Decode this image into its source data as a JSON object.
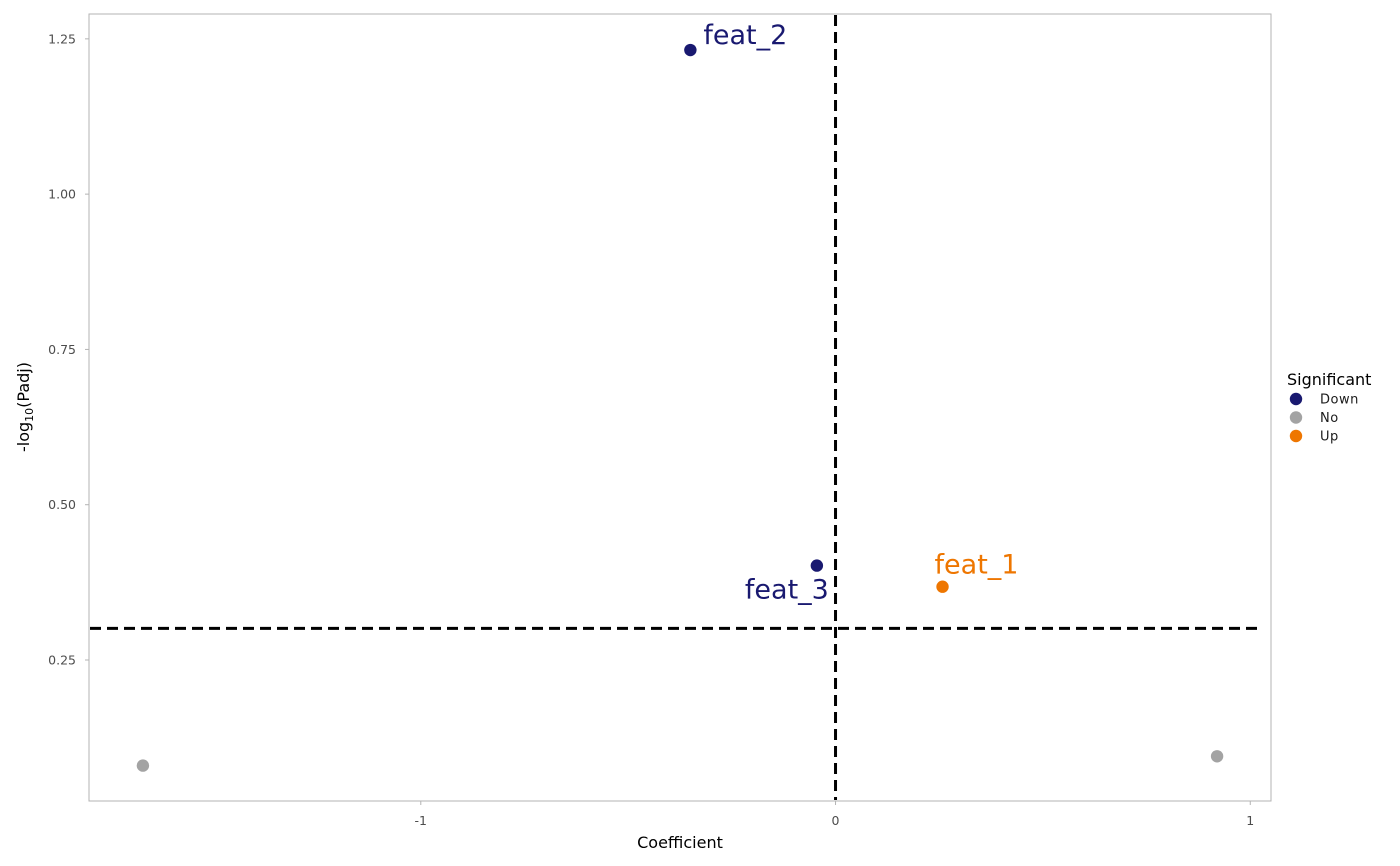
{
  "chart_data": {
    "type": "scatter",
    "xlabel": "Coefficient",
    "ylabel_parts": [
      "-log",
      "10",
      "(Padj)"
    ],
    "xlim": [
      -1.8,
      1.05
    ],
    "ylim": [
      0.023,
      1.29
    ],
    "x_ticks": [
      {
        "value": -1,
        "label": "-1"
      },
      {
        "value": 0,
        "label": "0"
      },
      {
        "value": 1,
        "label": "1"
      }
    ],
    "y_ticks": [
      {
        "value": 0.25,
        "label": "0.25"
      },
      {
        "value": 0.5,
        "label": "0.50"
      },
      {
        "value": 0.75,
        "label": "0.75"
      },
      {
        "value": 1.0,
        "label": "1.00"
      },
      {
        "value": 1.25,
        "label": "1.25"
      }
    ],
    "reference_lines": {
      "vertical_x": 0,
      "horizontal_y": 0.301
    },
    "legend": {
      "title": "Significant",
      "position": "right",
      "entries": [
        {
          "label": "Down",
          "color": "#191970"
        },
        {
          "label": "No",
          "color": "#a3a3a3"
        },
        {
          "label": "Up",
          "color": "#ee7600"
        }
      ]
    },
    "points": [
      {
        "x": -0.35,
        "y": 1.232,
        "group": "Down",
        "label": "feat_2",
        "label_pos": "top-right"
      },
      {
        "x": -0.045,
        "y": 0.402,
        "group": "Down",
        "label": "feat_3",
        "label_pos": "bottom-left"
      },
      {
        "x": 0.258,
        "y": 0.368,
        "group": "Up",
        "label": "feat_1",
        "label_pos": "top"
      },
      {
        "x": -1.67,
        "y": 0.08,
        "group": "No",
        "label": ""
      },
      {
        "x": 0.92,
        "y": 0.095,
        "group": "No",
        "label": ""
      }
    ],
    "grid": false
  }
}
